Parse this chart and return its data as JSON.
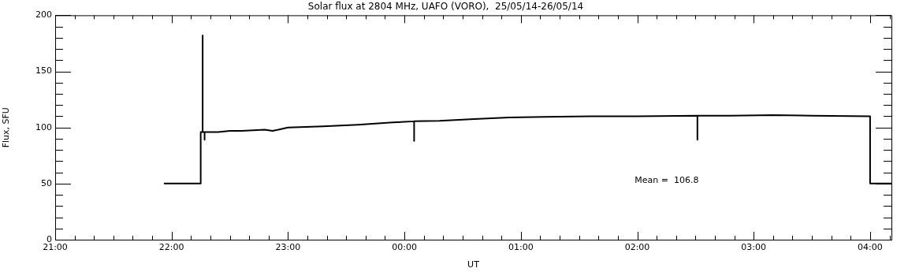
{
  "chart_data": {
    "type": "line",
    "title": "Solar flux at 2804 MHz, UAFO (VORO),  25/05/14-26/05/14",
    "xlabel": "UT",
    "ylabel": "Flux, SFU",
    "x": [
      "--05-25T21:56",
      "--05-25T22:15",
      "--05-25T22:15",
      "--05-25T22:16",
      "--05-25T22:16",
      "--05-25T22:16",
      "--05-25T22:17",
      "--05-25T22:17",
      "--05-25T22:17",
      "--05-25T22:24",
      "--05-25T22:30",
      "--05-25T22:36",
      "--05-25T22:42",
      "--05-25T22:48",
      "--05-25T22:52",
      "--05-25T22:55",
      "--05-25T23:00",
      "--05-25T23:18",
      "--05-25T23:36",
      "--05-25T23:54",
      "--05-26T00:05",
      "--05-26T00:05",
      "--05-26T00:05",
      "--05-26T00:18",
      "--05-26T00:36",
      "--05-26T00:54",
      "--05-26T01:12",
      "--05-26T01:36",
      "--05-26T02:00",
      "--05-26T02:31",
      "--05-26T02:31",
      "--05-26T02:31",
      "--05-26T02:48",
      "--05-26T03:10",
      "--05-26T03:30",
      "--05-26T04:00",
      "--05-26T04:00",
      "--05-26T04:11"
    ],
    "series": [
      {
        "color": "#000000",
        "values": [
          50,
          50,
          96,
          96,
          182,
          96,
          96,
          89,
          96,
          96,
          97,
          97,
          97.5,
          98,
          97,
          98,
          100,
          101,
          102.5,
          104.5,
          105.5,
          88,
          105.5,
          106,
          107.5,
          109,
          109.5,
          110,
          110,
          110.5,
          89,
          110.5,
          110.5,
          111,
          110.5,
          110,
          50,
          50
        ]
      }
    ],
    "xlim": [
      "--05-25T21:00",
      "--05-26T04:11"
    ],
    "xticks": [
      {
        "value": "--05-25T21:00",
        "label": "21:00"
      },
      {
        "value": "--05-25T21:10",
        "label": null
      },
      {
        "value": "--05-25T21:20",
        "label": null
      },
      {
        "value": "--05-25T21:30",
        "label": null
      },
      {
        "value": "--05-25T21:40",
        "label": null
      },
      {
        "value": "--05-25T21:50",
        "label": null
      },
      {
        "value": "--05-25T22:00",
        "label": "22:00"
      },
      {
        "value": "--05-25T22:10",
        "label": null
      },
      {
        "value": "--05-25T22:20",
        "label": null
      },
      {
        "value": "--05-25T22:30",
        "label": null
      },
      {
        "value": "--05-25T22:40",
        "label": null
      },
      {
        "value": "--05-25T22:50",
        "label": null
      },
      {
        "value": "--05-25T23:00",
        "label": "23:00"
      },
      {
        "value": "--05-25T23:10",
        "label": null
      },
      {
        "value": "--05-25T23:20",
        "label": null
      },
      {
        "value": "--05-25T23:30",
        "label": null
      },
      {
        "value": "--05-25T23:40",
        "label": null
      },
      {
        "value": "--05-25T23:50",
        "label": null
      },
      {
        "value": "--05-26T00:00",
        "label": "00:00"
      },
      {
        "value": "--05-26T00:10",
        "label": null
      },
      {
        "value": "--05-26T00:20",
        "label": null
      },
      {
        "value": "--05-26T00:30",
        "label": null
      },
      {
        "value": "--05-26T00:40",
        "label": null
      },
      {
        "value": "--05-26T00:50",
        "label": null
      },
      {
        "value": "--05-26T01:00",
        "label": "01:00"
      },
      {
        "value": "--05-26T01:10",
        "label": null
      },
      {
        "value": "--05-26T01:20",
        "label": null
      },
      {
        "value": "--05-26T01:30",
        "label": null
      },
      {
        "value": "--05-26T01:40",
        "label": null
      },
      {
        "value": "--05-26T01:50",
        "label": null
      },
      {
        "value": "--05-26T02:00",
        "label": "02:00"
      },
      {
        "value": "--05-26T02:10",
        "label": null
      },
      {
        "value": "--05-26T02:20",
        "label": null
      },
      {
        "value": "--05-26T02:30",
        "label": null
      },
      {
        "value": "--05-26T02:40",
        "label": null
      },
      {
        "value": "--05-26T02:50",
        "label": null
      },
      {
        "value": "--05-26T03:00",
        "label": "03:00"
      },
      {
        "value": "--05-26T03:10",
        "label": null
      },
      {
        "value": "--05-26T03:20",
        "label": null
      },
      {
        "value": "--05-26T03:30",
        "label": null
      },
      {
        "value": "--05-26T03:40",
        "label": null
      },
      {
        "value": "--05-26T03:50",
        "label": null
      },
      {
        "value": "--05-26T04:00",
        "label": "04:00"
      },
      {
        "value": "--05-26T04:10",
        "label": null
      }
    ],
    "ylim": [
      0,
      200
    ],
    "yticks": [
      0,
      {
        "value": 10,
        "label": null
      },
      {
        "value": 20,
        "label": null
      },
      {
        "value": 30,
        "label": null
      },
      {
        "value": 40,
        "label": null
      },
      50,
      {
        "value": 60,
        "label": null
      },
      {
        "value": 70,
        "label": null
      },
      {
        "value": 80,
        "label": null
      },
      {
        "value": 90,
        "label": null
      },
      100,
      {
        "value": 110,
        "label": null
      },
      {
        "value": 120,
        "label": null
      },
      {
        "value": 130,
        "label": null
      },
      {
        "value": 140,
        "label": null
      },
      150,
      {
        "value": 160,
        "label": null
      },
      {
        "value": 170,
        "label": null
      },
      {
        "value": 180,
        "label": null
      },
      {
        "value": 190,
        "label": null
      },
      200
    ],
    "annotations": [
      "Mean =  106.8"
    ],
    "marker": "none",
    "line_style": "solid"
  }
}
